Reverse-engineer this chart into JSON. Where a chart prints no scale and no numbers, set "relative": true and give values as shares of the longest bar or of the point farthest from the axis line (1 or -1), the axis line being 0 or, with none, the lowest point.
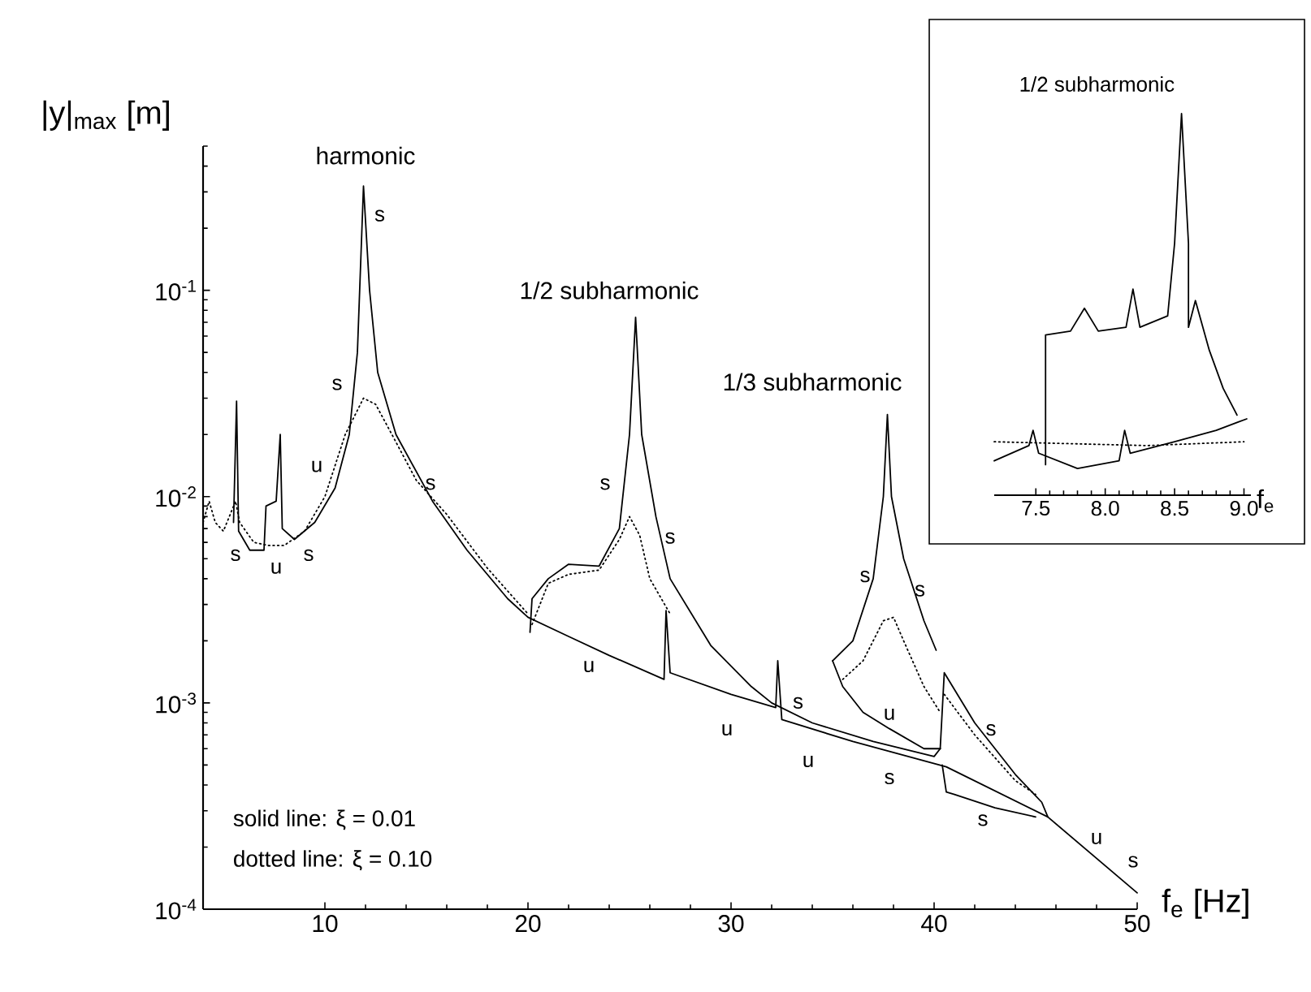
{
  "chart_data": [
    {
      "type": "line",
      "log": "y",
      "xlabel": "f$_{e}$ [Hz]",
      "ylabel": "|y|$_{max}$ [m]",
      "xlim": [
        4,
        50
      ],
      "xticks": [
        10,
        20,
        30,
        40,
        50
      ],
      "ylim": [
        0.0001,
        0.5
      ],
      "yticks": [
        {
          "value": 0.0001,
          "label": "10$^{-4}$"
        },
        {
          "value": 0.001,
          "label": "10$^{-3}$"
        },
        {
          "value": 0.01,
          "label": "10$^{-2}$"
        },
        {
          "value": 0.1,
          "label": "10$^{-1}$"
        }
      ],
      "series": [
        {
          "color": "#000000",
          "line_style": "solid",
          "x": [
            5.5,
            5.65,
            5.75,
            6.3,
            7.0,
            7.1,
            7.6,
            7.8,
            7.9,
            8.5,
            9.5,
            10.5,
            11.2,
            11.6,
            11.9,
            12.2,
            12.6,
            13.5,
            15.3,
            17,
            19,
            20,
            22,
            24,
            26.7,
            26.8,
            27,
            30,
            32.2,
            32.3,
            32.5,
            36,
            40.6,
            45.6,
            50
          ],
          "values": [
            0.0075,
            0.029,
            0.0068,
            0.0055,
            0.0055,
            0.009,
            0.0095,
            0.02,
            0.007,
            0.0062,
            0.0075,
            0.011,
            0.02,
            0.05,
            0.32,
            0.1,
            0.04,
            0.02,
            0.0095,
            0.0055,
            0.0032,
            0.0026,
            0.0021,
            0.0017,
            0.0013,
            0.0028,
            0.0014,
            0.0011,
            0.00095,
            0.0016,
            0.00083,
            0.00065,
            0.00049,
            0.00028,
            0.00012
          ]
        },
        {
          "color": "#000000",
          "line_style": "solid",
          "x": [
            20.1,
            20.2,
            21,
            22,
            23.5,
            24.5,
            25,
            25.3,
            25.6,
            26.3,
            27,
            29,
            31,
            32,
            34,
            37,
            40,
            40.3
          ],
          "values": [
            0.0022,
            0.0032,
            0.004,
            0.0047,
            0.0046,
            0.007,
            0.02,
            0.074,
            0.02,
            0.008,
            0.004,
            0.0019,
            0.0012,
            0.001,
            0.0008,
            0.00065,
            0.00055,
            0.0006
          ]
        },
        {
          "color": "#000000",
          "line_style": "solid",
          "x": [
            35,
            36,
            37,
            37.5,
            37.7,
            37.9,
            38.5,
            39.5,
            40.1
          ],
          "values": [
            0.0016,
            0.002,
            0.004,
            0.01,
            0.025,
            0.01,
            0.005,
            0.0025,
            0.0018
          ]
        },
        {
          "color": "#000000",
          "line_style": "solid",
          "x": [
            35,
            35.5,
            36.5,
            37.8,
            39.5,
            40.3
          ],
          "values": [
            0.0016,
            0.0012,
            0.0009,
            0.00075,
            0.0006,
            0.0006
          ]
        },
        {
          "color": "#000000",
          "line_style": "solid",
          "x": [
            40.3,
            40.5,
            42,
            44,
            45.3,
            45.6
          ],
          "values": [
            0.0006,
            0.0014,
            0.0008,
            0.00045,
            0.00033,
            0.00028
          ]
        },
        {
          "color": "#000000",
          "line_style": "solid",
          "x": [
            40.4,
            40.6,
            41,
            43,
            45
          ],
          "values": [
            0.0005,
            0.00037,
            0.00036,
            0.00031,
            0.00028
          ]
        },
        {
          "color": "#000000",
          "line_style": "dotted",
          "x": [
            4,
            4.3,
            4.6,
            5,
            5.6,
            5.8,
            6.5,
            7.2,
            8,
            9,
            10,
            11,
            11.9,
            12.5,
            13.3,
            14.5,
            16,
            18,
            20
          ],
          "values": [
            0.0075,
            0.0095,
            0.0075,
            0.0068,
            0.0095,
            0.0075,
            0.006,
            0.0058,
            0.0058,
            0.0068,
            0.01,
            0.02,
            0.03,
            0.028,
            0.02,
            0.012,
            0.0082,
            0.0045,
            0.0027
          ]
        },
        {
          "color": "#000000",
          "line_style": "dotted",
          "x": [
            20.2,
            21,
            22,
            23.5,
            24.5,
            25,
            25.5,
            26,
            27
          ],
          "values": [
            0.0024,
            0.0038,
            0.0042,
            0.0044,
            0.0062,
            0.008,
            0.0065,
            0.004,
            0.0027
          ]
        },
        {
          "color": "#000000",
          "line_style": "dotted",
          "x": [
            35.5,
            36.5,
            37.5,
            38,
            38.5,
            39.5,
            40.3
          ],
          "values": [
            0.0013,
            0.0016,
            0.0025,
            0.0026,
            0.002,
            0.0012,
            0.0009
          ]
        },
        {
          "color": "#000000",
          "line_style": "dotted",
          "x": [
            40.5,
            42,
            44,
            45
          ],
          "values": [
            0.0011,
            0.0007,
            0.00042,
            0.00036
          ]
        }
      ],
      "annotations": [
        "harmonic",
        "1/2 subharmonic",
        "1/3 subharmonic",
        "s",
        "s",
        "u",
        "s",
        "s",
        "s",
        "u",
        "s",
        "s",
        "u",
        "s",
        "s",
        "u",
        "s",
        "u",
        "u",
        "s",
        "s",
        "s",
        "u",
        "s",
        "solid line: ξ = 0.01",
        "dotted line: ξ = 0.10"
      ]
    },
    {
      "type": "line",
      "relative": true,
      "tick_labels": "x",
      "title": "1/2 subharmonic",
      "xlabel": "f$_{e}$",
      "xlim": [
        7.2,
        9.05
      ],
      "xticks": [
        7.5,
        {
          "value": 8.0,
          "label": "8.0"
        },
        8.5,
        {
          "value": 9.0,
          "label": "9.0"
        }
      ],
      "series": [
        {
          "color": "#000000",
          "line_style": "solid",
          "x": [
            7.2,
            7.45,
            7.48,
            7.52,
            7.8,
            8.1,
            8.14,
            8.18,
            8.5,
            8.8,
            9.02
          ],
          "values": [
            0.09,
            0.13,
            0.17,
            0.11,
            0.07,
            0.09,
            0.17,
            0.11,
            0.14,
            0.17,
            0.2
          ]
        },
        {
          "color": "#000000",
          "line_style": "solid",
          "x": [
            7.57,
            7.57,
            7.75,
            7.85,
            7.95,
            8.15,
            8.2,
            8.25,
            8.45,
            8.5,
            8.55,
            8.6,
            8.6,
            8.65,
            8.75,
            8.85,
            8.95
          ],
          "values": [
            0.08,
            0.42,
            0.43,
            0.49,
            0.43,
            0.44,
            0.54,
            0.44,
            0.47,
            0.66,
            1,
            0.66,
            0.44,
            0.51,
            0.38,
            0.28,
            0.21
          ]
        },
        {
          "color": "#000000",
          "line_style": "dotted",
          "x": [
            7.2,
            8.3,
            9.0
          ],
          "values": [
            0.14,
            0.13,
            0.14
          ]
        }
      ]
    }
  ]
}
